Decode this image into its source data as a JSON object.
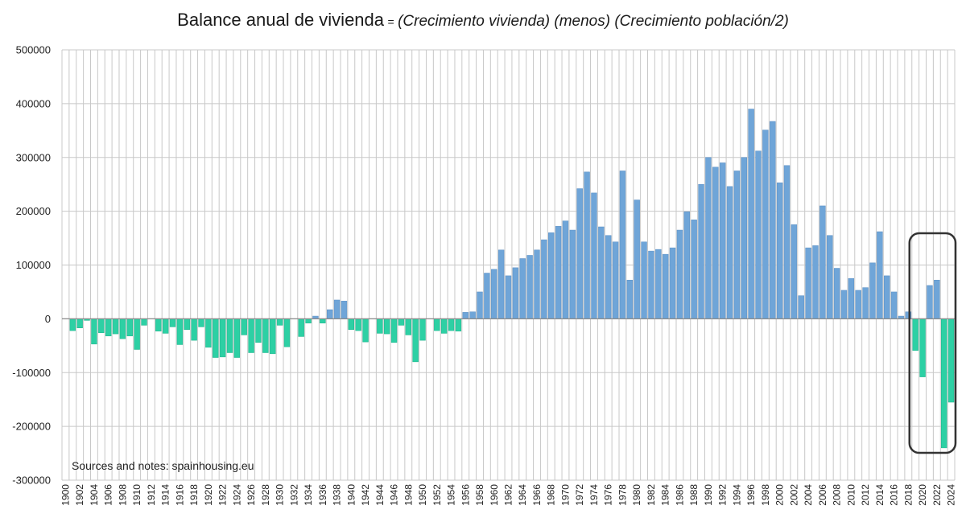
{
  "chart_data": {
    "type": "bar",
    "title": "Balance anual de vivienda",
    "title_eq": "=",
    "title_formula": "(Crecimiento vivienda) (menos) (Crecimiento población/2)",
    "xlabel": "",
    "ylabel": "",
    "ylim": [
      -300000,
      500000
    ],
    "yticks": [
      "500000",
      "400000",
      "300000",
      "200000",
      "100000",
      "0",
      "-100000",
      "-200000",
      "-300000"
    ],
    "grid": true,
    "legend": "none",
    "note": "Sources and notes: spainhousing.eu",
    "highlight_box": [
      2019,
      2024
    ],
    "colors": {
      "positive": "#6fa5d8",
      "negative": "#2dd0a4",
      "grid": "#c8c8c8",
      "box": "#333333"
    },
    "x": [
      1900,
      1901,
      1902,
      1903,
      1904,
      1905,
      1906,
      1907,
      1908,
      1909,
      1910,
      1911,
      1912,
      1913,
      1914,
      1915,
      1916,
      1917,
      1918,
      1919,
      1920,
      1921,
      1922,
      1923,
      1924,
      1925,
      1926,
      1927,
      1928,
      1929,
      1930,
      1931,
      1932,
      1933,
      1934,
      1935,
      1936,
      1937,
      1938,
      1939,
      1940,
      1941,
      1942,
      1943,
      1944,
      1945,
      1946,
      1947,
      1948,
      1949,
      1950,
      1951,
      1952,
      1953,
      1954,
      1955,
      1956,
      1957,
      1958,
      1959,
      1960,
      1961,
      1962,
      1963,
      1964,
      1965,
      1966,
      1967,
      1968,
      1969,
      1970,
      1971,
      1972,
      1973,
      1974,
      1975,
      1976,
      1977,
      1978,
      1979,
      1980,
      1981,
      1982,
      1983,
      1984,
      1985,
      1986,
      1987,
      1988,
      1989,
      1990,
      1991,
      1992,
      1993,
      1994,
      1995,
      1996,
      1997,
      1998,
      1999,
      2000,
      2001,
      2002,
      2003,
      2004,
      2005,
      2006,
      2007,
      2008,
      2009,
      2010,
      2011,
      2012,
      2013,
      2014,
      2015,
      2016,
      2017,
      2018,
      2019,
      2020,
      2021,
      2022,
      2023,
      2024
    ],
    "values": [
      0,
      -22000,
      -17000,
      -3000,
      -47000,
      -26000,
      -32000,
      -28000,
      -37000,
      -32000,
      -57000,
      -12000,
      0,
      -23000,
      -27000,
      -15000,
      -48000,
      -20000,
      -40000,
      -15000,
      -53000,
      -72000,
      -71000,
      -63000,
      -72000,
      -30000,
      -63000,
      -44000,
      -63000,
      -65000,
      -12000,
      -52000,
      0,
      -33000,
      -8000,
      5000,
      -8000,
      17000,
      35000,
      33000,
      -20000,
      -22000,
      -43000,
      0,
      -27000,
      -28000,
      -44000,
      -12000,
      -30000,
      -80000,
      -40000,
      0,
      -22000,
      -27000,
      -22000,
      -23000,
      12000,
      13000,
      50000,
      85000,
      92000,
      128000,
      80000,
      95000,
      112000,
      118000,
      128000,
      147000,
      160000,
      172000,
      182000,
      165000,
      242000,
      273000,
      234000,
      171000,
      155000,
      143000,
      275000,
      72000,
      221000,
      143000,
      126000,
      129000,
      120000,
      132000,
      165000,
      199000,
      184000,
      250000,
      300000,
      282000,
      290000,
      246000,
      275000,
      300000,
      390000,
      312000,
      351000,
      367000,
      253000,
      285000,
      175000,
      43000,
      132000,
      136000,
      210000,
      155000,
      94000,
      53000,
      75000,
      53000,
      58000,
      104000,
      162000,
      80000,
      50000,
      5000,
      13000,
      -59000,
      -108000,
      62000,
      72000,
      -240000,
      -155000
    ],
    "xtick_labels": [
      "1900",
      "1902",
      "1904",
      "1906",
      "1908",
      "1910",
      "1912",
      "1914",
      "1916",
      "1918",
      "1920",
      "1922",
      "1924",
      "1926",
      "1928",
      "1930",
      "1932",
      "1934",
      "1936",
      "1938",
      "1940",
      "1942",
      "1944",
      "1946",
      "1948",
      "1950",
      "1952",
      "1954",
      "1956",
      "1958",
      "1960",
      "1962",
      "1964",
      "1966",
      "1968",
      "1970",
      "1972",
      "1974",
      "1976",
      "1978",
      "1980",
      "1982",
      "1984",
      "1986",
      "1988",
      "1990",
      "1992",
      "1994",
      "1996",
      "1998",
      "2000",
      "2002",
      "2004",
      "2006",
      "2008",
      "2010",
      "2012",
      "2014",
      "2016",
      "2018",
      "2020",
      "2022",
      "2024"
    ]
  }
}
